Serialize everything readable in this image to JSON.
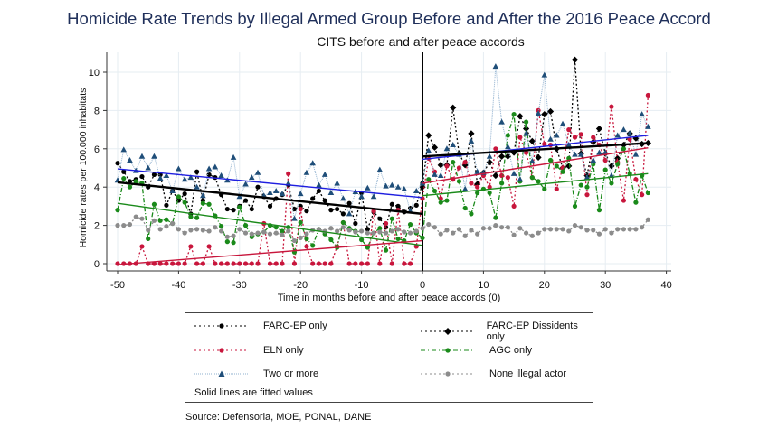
{
  "title": "Homicide Rate Trends by Illegal Armed Group Before and After the 2016 Peace Accord",
  "source": "Source: Defensoria, MOE, PONAL, DANE",
  "chart_data": {
    "type": "line",
    "title": "CITS before and after peace accords",
    "xlabel": "Time in months before and after peace accords (0)",
    "ylabel": "Homicide rates per 100.000 inhabitats",
    "xlim": [
      -52,
      41
    ],
    "ylim": [
      -0.6,
      11
    ],
    "xticks": [
      -50,
      -40,
      -30,
      -20,
      -10,
      0,
      10,
      20,
      30,
      40
    ],
    "yticks": [
      0,
      2,
      4,
      6,
      8,
      10
    ],
    "grid": true,
    "vertical_line_at": 0,
    "legend_position": "bottom",
    "legend_note": "Solid lines are fitted values",
    "series": [
      {
        "name": "FARC-EP only",
        "color": "#000000",
        "marker": "circle",
        "line": "dotted",
        "x_start": -50,
        "values": [
          5.25,
          4.8,
          4.3,
          4.4,
          4.55,
          4.0,
          4.65,
          4.65,
          3.05,
          3.8,
          3.3,
          3.65,
          2.6,
          4.8,
          3.3,
          4.65,
          4.5,
          3.6,
          2.85,
          2.8,
          3.0,
          3.3,
          2.85,
          4.0,
          3.5,
          3.0,
          3.4,
          3.6,
          4.1,
          2.85,
          3.0,
          2.75,
          3.4,
          3.8,
          3.3,
          2.8,
          2.85,
          2.6,
          3.15,
          2.1,
          3.7,
          1.8,
          2.7,
          2.35,
          1.9,
          3.1,
          3.0,
          2.7,
          2.9,
          3.05,
          4.2
        ]
      },
      {
        "name": "FARC-EP Dissidents only",
        "color": "#000000",
        "marker": "diamond",
        "line": "dotted",
        "x_start": 0,
        "values": [
          4.0,
          6.7,
          6.07,
          5.15,
          5.15,
          8.15,
          5.75,
          5.15,
          6.8,
          4.15,
          4.75,
          5.3,
          4.6,
          5.6,
          5.6,
          5.8,
          7.7,
          7.05,
          6.4,
          5.55,
          7.8,
          7.95,
          6.0,
          5.0,
          5.1,
          10.65,
          5.75,
          4.6,
          6.35,
          7.05,
          5.75,
          5.1,
          5.5,
          6.2,
          6.8,
          6.55,
          6.25,
          6.3
        ]
      },
      {
        "name": "ELN only",
        "color": "#c8163c",
        "marker": "circle",
        "line": "dotted",
        "x_start": -50,
        "values": [
          0,
          0,
          0,
          0,
          0.9,
          0,
          0,
          0,
          0,
          0,
          0,
          0,
          0.9,
          0,
          0,
          0.9,
          0,
          0,
          0,
          0,
          0,
          0,
          0,
          0,
          2.1,
          0,
          0,
          0,
          4.7,
          0,
          2.85,
          0.9,
          0,
          0,
          0,
          0,
          0.9,
          2.15,
          0,
          0,
          0,
          0,
          2.75,
          0,
          2.1,
          0,
          2.8,
          0,
          0,
          0.9,
          3.4,
          5.5,
          4.8,
          3.4,
          5.1,
          4.4,
          5.0,
          5.3,
          4.2,
          4.0,
          4.6,
          4.0,
          6.0,
          4.6,
          4.5,
          3.0,
          6.6,
          5.8,
          4.5,
          8.0,
          6.25,
          6.2,
          3.9,
          5.0,
          7.0,
          6.6,
          6.75,
          3.6,
          6.6,
          6.2,
          5.4,
          8.2,
          5.3,
          3.3,
          6.5,
          4.4,
          3.6,
          8.8
        ]
      },
      {
        "name": "AGC only",
        "color": "#1a8a1a",
        "marker": "circle",
        "line": "dashdot",
        "x_start": -50,
        "values": [
          2.8,
          4.45,
          4.0,
          4.3,
          4.2,
          1.3,
          3.1,
          2.25,
          2.3,
          2.1,
          3.5,
          3.2,
          2.45,
          2.4,
          3.15,
          3.1,
          2.5,
          1.95,
          1.15,
          1.1,
          2.95,
          2.0,
          1.4,
          1.55,
          1.65,
          2.0,
          1.9,
          1.7,
          1.9,
          0.6,
          2.15,
          1.3,
          0.95,
          1.8,
          1.55,
          1.25,
          0.85,
          2.15,
          1.85,
          1.7,
          1.25,
          0.85,
          1.6,
          1.85,
          0.7,
          2.35,
          1.3,
          1.2,
          2.05,
          1.6,
          1.35,
          4.4,
          3.8,
          3.2,
          3.3,
          5.3,
          4.3,
          2.9,
          2.6,
          3.7,
          3.9,
          3.7,
          2.4,
          4.2,
          6.7,
          7.8,
          4.3,
          7.4,
          4.5,
          4.3,
          3.9,
          5.4,
          5.1,
          4.8,
          5.5,
          3.0,
          4.1,
          4.0,
          5.2,
          2.8,
          4.9,
          4.2,
          5.2,
          6.0,
          4.7,
          3.2,
          4.6,
          3.7
        ]
      },
      {
        "name": "Two or more",
        "color": "#1f4e79",
        "line_color": "#8fb0cf",
        "marker": "triangle",
        "line": "dotted",
        "x_start": -50,
        "values": [
          4.35,
          5.95,
          5.4,
          4.85,
          5.6,
          5.0,
          5.6,
          4.45,
          4.6,
          3.8,
          4.95,
          4.4,
          4.5,
          4.0,
          3.55,
          4.95,
          5.05,
          4.6,
          4.35,
          5.55,
          3.5,
          4.15,
          4.5,
          4.75,
          3.55,
          3.7,
          3.8,
          3.65,
          4.2,
          2.35,
          3.65,
          4.75,
          5.25,
          4.1,
          4.65,
          3.7,
          4.2,
          3.4,
          2.6,
          3.75,
          3.5,
          3.95,
          3.5,
          4.9,
          4.05,
          4.1,
          4.0,
          3.9,
          2.75,
          3.8,
          4.2,
          5.9,
          4.65,
          4.6,
          6.0,
          6.2,
          5.7,
          3.9,
          6.4,
          4.8,
          4.75,
          5.6,
          10.3,
          7.4,
          6.1,
          4.7,
          4.4,
          6.8,
          5.35,
          7.85,
          9.85,
          6.5,
          6.7,
          7.3,
          6.2,
          5.7,
          5.7,
          4.5,
          5.4,
          5.8,
          5.8,
          4.6,
          6.7,
          7.0,
          6.8,
          5.7,
          7.8,
          7.15
        ]
      },
      {
        "name": "None illegal actor",
        "color": "#8c8c8c",
        "marker": "circle",
        "line": "dotted",
        "x_start": -50,
        "values": [
          2.0,
          2.0,
          2.05,
          2.45,
          2.35,
          1.75,
          2.25,
          1.8,
          1.95,
          2.1,
          1.8,
          1.6,
          1.75,
          1.8,
          1.75,
          1.7,
          1.9,
          1.7,
          1.4,
          1.45,
          1.8,
          1.6,
          1.55,
          1.6,
          1.65,
          1.55,
          1.6,
          1.5,
          1.7,
          1.2,
          1.35,
          1.55,
          1.75,
          1.8,
          1.7,
          1.85,
          1.7,
          1.9,
          1.75,
          1.65,
          1.7,
          1.6,
          1.6,
          1.65,
          1.6,
          1.7,
          1.8,
          1.65,
          1.6,
          1.7,
          1.85,
          2.05,
          1.9,
          1.55,
          1.75,
          1.6,
          1.8,
          1.45,
          1.75,
          1.55,
          1.85,
          1.85,
          2.0,
          1.9,
          1.9,
          1.5,
          1.85,
          1.6,
          1.45,
          1.6,
          1.8,
          1.8,
          1.8,
          1.8,
          1.7,
          2.0,
          1.9,
          1.75,
          1.75,
          1.55,
          1.8,
          1.6,
          1.8,
          1.8,
          1.8,
          1.8,
          1.9,
          2.3
        ]
      }
    ],
    "fitted_lines": [
      {
        "group": "Two or more",
        "color": "#1f1fe0",
        "x": [
          -50,
          0
        ],
        "y": [
          4.95,
          3.45
        ]
      },
      {
        "group": "FARC-EP only",
        "color": "#000000",
        "x": [
          -50,
          0
        ],
        "y": [
          4.25,
          2.6
        ]
      },
      {
        "group": "AGC only",
        "color": "#1a8a1a",
        "x": [
          -50,
          0
        ],
        "y": [
          3.15,
          0.95
        ]
      },
      {
        "group": "ELN only",
        "color": "#c8163c",
        "x": [
          -50,
          0
        ],
        "y": [
          -0.05,
          1.2
        ]
      },
      {
        "group": "Two or more",
        "color": "#1f1fe0",
        "x": [
          0,
          37
        ],
        "y": [
          5.45,
          6.7
        ]
      },
      {
        "group": "FARC-EP Dissidents only",
        "color": "#000000",
        "x": [
          0,
          37
        ],
        "y": [
          5.6,
          6.3
        ]
      },
      {
        "group": "ELN only",
        "color": "#c8163c",
        "x": [
          0,
          37
        ],
        "y": [
          4.2,
          6.05
        ]
      },
      {
        "group": "AGC only",
        "color": "#1a8a1a",
        "x": [
          0,
          37
        ],
        "y": [
          3.55,
          4.7
        ]
      }
    ]
  }
}
